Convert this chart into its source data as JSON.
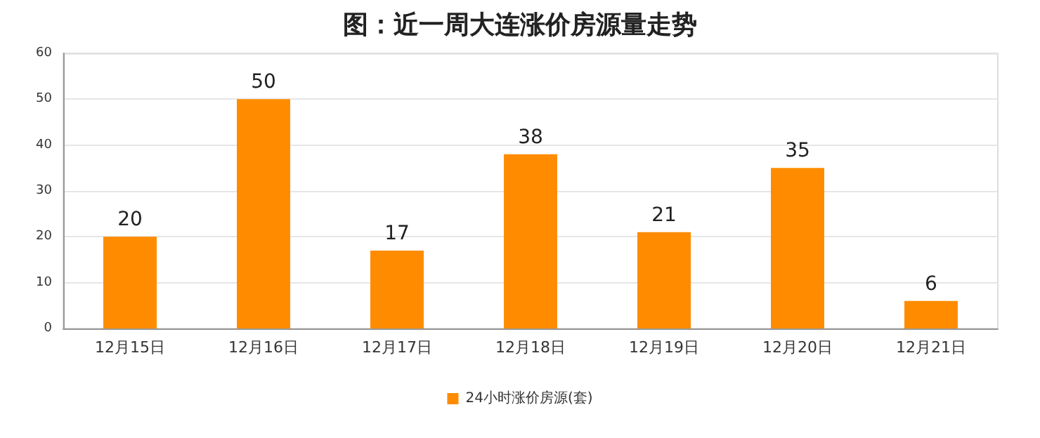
{
  "chart_data": {
    "type": "bar",
    "title": "图：近一周大连涨价房源量走势",
    "categories": [
      "12月15日",
      "12月16日",
      "12月17日",
      "12月18日",
      "12月19日",
      "12月20日",
      "12月21日"
    ],
    "series": [
      {
        "name": "24小时涨价房源(套)",
        "color": "#ff8c00",
        "values": [
          20,
          50,
          17,
          38,
          21,
          35,
          6
        ]
      }
    ],
    "ylim": [
      0,
      60
    ],
    "yticks": [
      0,
      10,
      20,
      30,
      40,
      50,
      60
    ],
    "grid": "y",
    "legend": "bottom",
    "data_labels": true
  }
}
